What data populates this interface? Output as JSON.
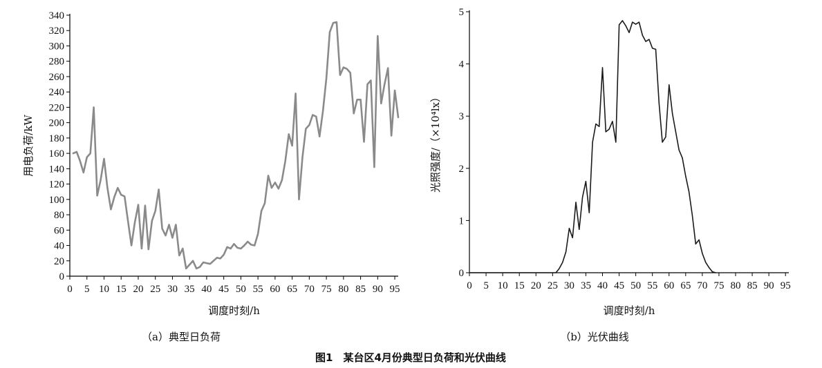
{
  "figure_caption": "图1　某台区4月份典型日负荷和光伏曲线",
  "chart_data": [
    {
      "type": "line",
      "subtitle": "（a）典型日负荷",
      "xlabel": "调度时刻/h",
      "ylabel": "用电负荷/kW",
      "xlim": [
        0,
        96
      ],
      "ylim": [
        0,
        340
      ],
      "xticks": [
        0,
        5,
        10,
        15,
        20,
        25,
        30,
        35,
        40,
        45,
        50,
        55,
        60,
        65,
        70,
        75,
        80,
        85,
        90,
        95
      ],
      "yticks": [
        0,
        20,
        40,
        60,
        80,
        100,
        120,
        140,
        160,
        180,
        200,
        220,
        240,
        260,
        280,
        300,
        320,
        340
      ],
      "grid": false,
      "line_color": "#8a8a8a",
      "series": [
        {
          "x": [
            1,
            2,
            3,
            4,
            5,
            6,
            7,
            8,
            9,
            10,
            11,
            12,
            13,
            14,
            15,
            16,
            17,
            18,
            19,
            20,
            21,
            22,
            23,
            24,
            25,
            26,
            27,
            28,
            29,
            30,
            31,
            32,
            33,
            34,
            35,
            36,
            37,
            38,
            39,
            40,
            41,
            42,
            43,
            44,
            45,
            46,
            47,
            48,
            49,
            50,
            51,
            52,
            53,
            54,
            55,
            56,
            57,
            58,
            59,
            60,
            61,
            62,
            63,
            64,
            65,
            66,
            67,
            68,
            69,
            70,
            71,
            72,
            73,
            74,
            75,
            76,
            77,
            78,
            79,
            80,
            81,
            82,
            83,
            84,
            85,
            86,
            87,
            88,
            89,
            90,
            91,
            92,
            93,
            94,
            95,
            96
          ],
          "values": [
            160,
            162,
            150,
            135,
            155,
            160,
            220,
            105,
            125,
            153,
            115,
            87,
            103,
            115,
            106,
            104,
            72,
            40,
            70,
            93,
            36,
            92,
            35,
            72,
            85,
            113,
            62,
            53,
            67,
            50,
            67,
            27,
            36,
            10,
            15,
            20,
            10,
            12,
            18,
            17,
            16,
            20,
            24,
            23,
            28,
            38,
            36,
            42,
            37,
            36,
            40,
            45,
            41,
            40,
            55,
            85,
            95,
            131,
            115,
            122,
            114,
            125,
            150,
            185,
            170,
            238,
            100,
            155,
            192,
            197,
            210,
            208,
            182,
            215,
            258,
            318,
            330,
            331,
            262,
            272,
            270,
            265,
            212,
            230,
            230,
            175,
            250,
            255,
            142,
            313,
            225,
            250,
            271,
            183,
            242,
            207
          ]
        }
      ]
    },
    {
      "type": "line",
      "subtitle": "（b）光伏曲线",
      "xlabel": "调度时刻/h",
      "ylabel": "光照强度/（×10⁴lx）",
      "xlim": [
        0,
        96
      ],
      "ylim": [
        0,
        5
      ],
      "xticks": [
        0,
        5,
        10,
        15,
        20,
        25,
        30,
        35,
        40,
        45,
        50,
        55,
        60,
        65,
        70,
        75,
        80,
        85,
        90,
        95
      ],
      "yticks": [
        0,
        1,
        2,
        3,
        4,
        5
      ],
      "grid": false,
      "line_color": "#1a1a1a",
      "series": [
        {
          "x": [
            0,
            25,
            26,
            27,
            28,
            29,
            30,
            31,
            32,
            33,
            34,
            35,
            36,
            37,
            38,
            39,
            40,
            41,
            42,
            43,
            44,
            45,
            46,
            47,
            48,
            49,
            50,
            51,
            52,
            53,
            54,
            55,
            56,
            57,
            58,
            59,
            60,
            61,
            62,
            63,
            64,
            65,
            66,
            67,
            68,
            69,
            70,
            71,
            72,
            73,
            74
          ],
          "values": [
            0,
            0,
            0,
            0.08,
            0.2,
            0.4,
            0.85,
            0.67,
            1.35,
            0.83,
            1.45,
            1.75,
            1.15,
            2.5,
            2.85,
            2.8,
            3.93,
            2.7,
            2.75,
            2.9,
            2.5,
            4.75,
            4.83,
            4.73,
            4.6,
            4.8,
            4.76,
            4.8,
            4.55,
            4.43,
            4.47,
            4.3,
            4.28,
            3.25,
            2.5,
            2.6,
            3.6,
            3.05,
            2.7,
            2.35,
            2.2,
            1.85,
            1.55,
            1.1,
            0.55,
            0.63,
            0.37,
            0.2,
            0.1,
            0.02,
            0
          ]
        }
      ]
    }
  ]
}
